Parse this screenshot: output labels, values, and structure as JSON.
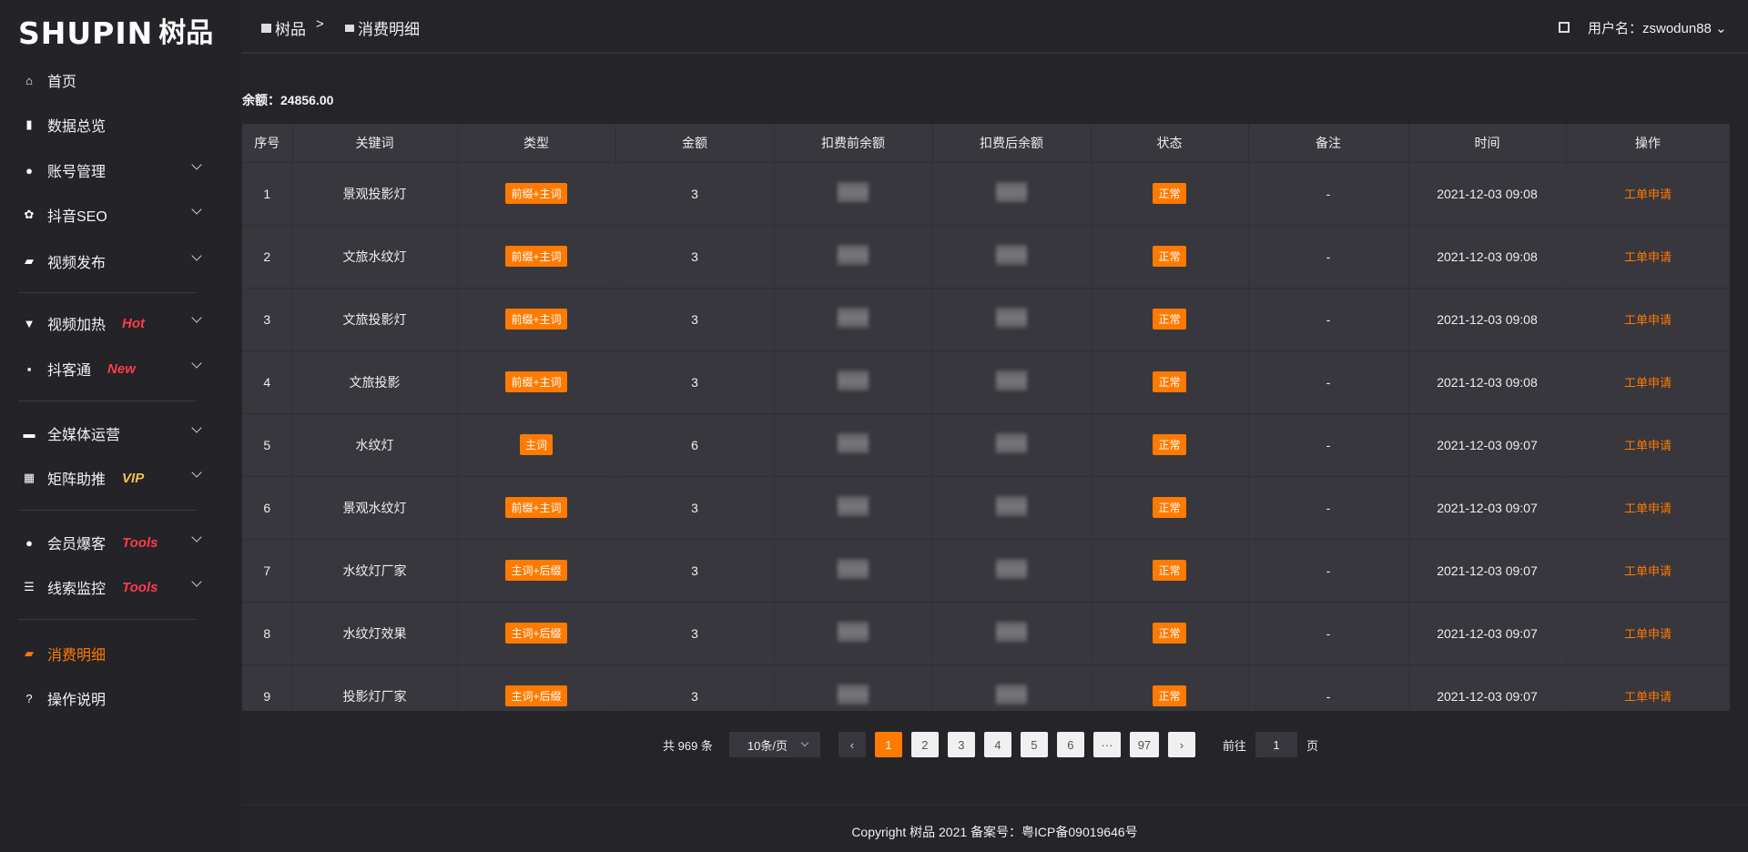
{
  "logo": {
    "en": "SHUPIN",
    "cn": "树品"
  },
  "sidebar": {
    "items": [
      {
        "label": "首页",
        "icon": "home-icon",
        "glyph": "⌂"
      },
      {
        "label": "数据总览",
        "icon": "bar-chart-icon",
        "glyph": "▮"
      },
      {
        "label": "账号管理",
        "icon": "user-icon",
        "glyph": "●",
        "chevron": true
      },
      {
        "label": "抖音SEO",
        "icon": "gear-icon",
        "glyph": "✿",
        "chevron": true
      },
      {
        "label": "视频发布",
        "icon": "video-icon",
        "glyph": "▰",
        "chevron": true
      },
      {
        "label": "视频加热",
        "icon": "heater-icon",
        "glyph": "▼",
        "chevron": true,
        "badge": "Hot",
        "badge_color": "#ff3b4a"
      },
      {
        "label": "抖客通",
        "icon": "chat-icon",
        "glyph": "▪",
        "chevron": true,
        "badge": "New",
        "badge_color": "#ff3b4a"
      },
      {
        "label": "全媒体运营",
        "icon": "monitor-icon",
        "glyph": "▬",
        "chevron": true
      },
      {
        "label": "矩阵助推",
        "icon": "grid-icon",
        "glyph": "▦",
        "chevron": true,
        "badge": "VIP",
        "badge_color": "#f7c04a"
      },
      {
        "label": "会员爆客",
        "icon": "user-icon",
        "glyph": "●",
        "chevron": true,
        "badge": "Tools",
        "badge_color": "#ff3b4a"
      },
      {
        "label": "线索监控",
        "icon": "sliders-icon",
        "glyph": "☰",
        "chevron": true,
        "badge": "Tools",
        "badge_color": "#ff3b4a"
      },
      {
        "label": "消费明细",
        "icon": "wallet-icon",
        "glyph": "▰",
        "active": true
      },
      {
        "label": "操作说明",
        "icon": "help-icon",
        "glyph": "?"
      }
    ]
  },
  "header": {
    "breadcrumb": [
      "树品",
      ">",
      "消费明细"
    ],
    "user": "用户名：zswodun88"
  },
  "balance": "余额：24856.00",
  "table": {
    "columns": [
      "序号",
      "关键词",
      "类型",
      "金额",
      "扣费前余额",
      "扣费后余额",
      "状态",
      "备注",
      "时间",
      "操作"
    ],
    "rows": [
      [
        "1",
        "景观投影灯",
        "前缀+主词",
        "3",
        "",
        "",
        "正常",
        "-",
        "2021-12-03 09:08",
        "工单申请"
      ],
      [
        "2",
        "文旅水纹灯",
        "前缀+主词",
        "3",
        "",
        "",
        "正常",
        "-",
        "2021-12-03 09:08",
        "工单申请"
      ],
      [
        "3",
        "文旅投影灯",
        "前缀+主词",
        "3",
        "",
        "",
        "正常",
        "-",
        "2021-12-03 09:08",
        "工单申请"
      ],
      [
        "4",
        "文旅投影",
        "前缀+主词",
        "3",
        "",
        "",
        "正常",
        "-",
        "2021-12-03 09:08",
        "工单申请"
      ],
      [
        "5",
        "水纹灯",
        "主词",
        "6",
        "",
        "",
        "正常",
        "-",
        "2021-12-03 09:07",
        "工单申请"
      ],
      [
        "6",
        "景观水纹灯",
        "前缀+主词",
        "3",
        "",
        "",
        "正常",
        "-",
        "2021-12-03 09:07",
        "工单申请"
      ],
      [
        "7",
        "水纹灯厂家",
        "主词+后缀",
        "3",
        "",
        "",
        "正常",
        "-",
        "2021-12-03 09:07",
        "工单申请"
      ],
      [
        "8",
        "水纹灯效果",
        "主词+后缀",
        "3",
        "",
        "",
        "正常",
        "-",
        "2021-12-03 09:07",
        "工单申请"
      ],
      [
        "9",
        "投影灯厂家",
        "主词+后缀",
        "3",
        "",
        "",
        "正常",
        "-",
        "2021-12-03 09:07",
        "工单申请"
      ]
    ]
  },
  "pagination": {
    "total": "共 969 条",
    "page_size": "10条/页",
    "pages": [
      "1",
      "2",
      "3",
      "4",
      "5",
      "6",
      "···",
      "97"
    ],
    "current": "1",
    "goto_label": "前往",
    "goto_value": "1",
    "page_unit": "页"
  },
  "footer": {
    "copyright": "Copyright 树品 2021 备案号：粤ICP备09019646号"
  },
  "colors": {
    "accent": "#ff7a00",
    "background": "#252428",
    "table": "#38373d"
  }
}
